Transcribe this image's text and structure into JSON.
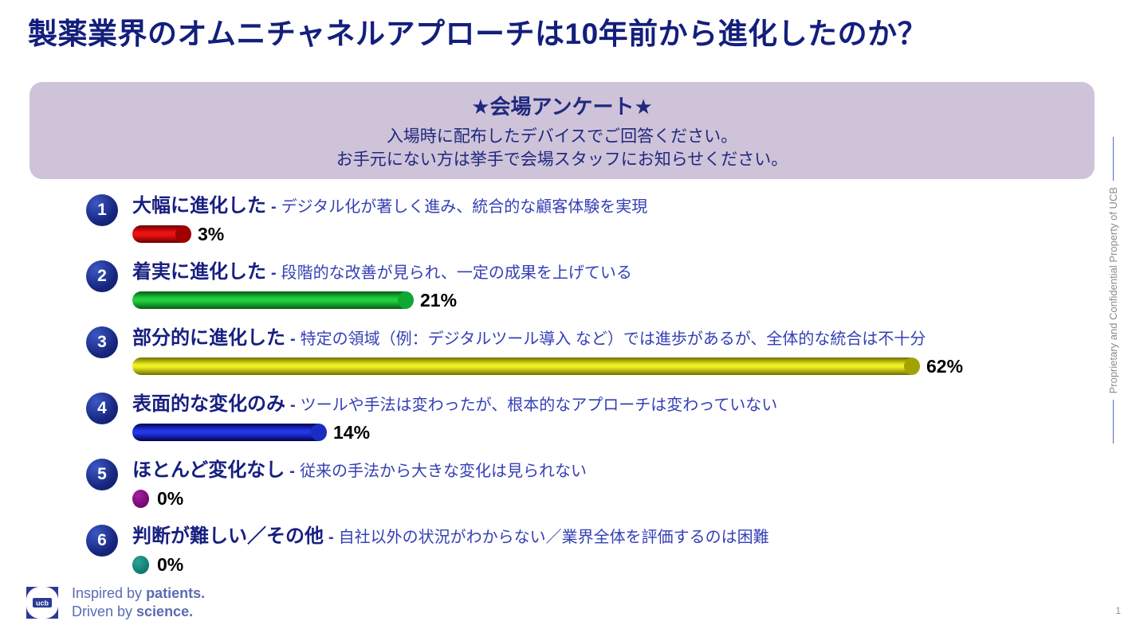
{
  "slide": {
    "title": "製薬業界のオムニチャネルアプローチは10年前から進化したのか？",
    "page_number": "1"
  },
  "banner": {
    "heading": "★会場アンケート★",
    "line1": "入場時に配布したデバイスでご回答ください。",
    "line2": "お手元にない方は挙手で会場スタッフにお知らせください。"
  },
  "ui": {
    "separator": "-"
  },
  "options": [
    {
      "number": "1",
      "label": "大幅に進化した",
      "description": "デジタル化が著しく進み、統合的な顧客体験を実現",
      "percent": 3,
      "percent_label": "3%",
      "bar_colors": {
        "bright": "#ee1111",
        "dark": "#6a0000",
        "cap": "#a00000"
      }
    },
    {
      "number": "2",
      "label": "着実に進化した",
      "description": "段階的な改善が見られ、一定の成果を上げている",
      "percent": 21,
      "percent_label": "21%",
      "bar_colors": {
        "bright": "#22cf3f",
        "dark": "#045c12",
        "cap": "#0ea832"
      }
    },
    {
      "number": "3",
      "label": "部分的に進化した",
      "description": "特定の領域（例：デジタルツール導入 など）では進歩があるが、全体的な統合は不十分",
      "percent": 62,
      "percent_label": "62%",
      "bar_colors": {
        "bright": "#eeee22",
        "dark": "#6e6e00",
        "cap": "#a3a300"
      }
    },
    {
      "number": "4",
      "label": "表面的な変化のみ",
      "description": "ツールや手法は変わったが、根本的なアプローチは変わっていない",
      "percent": 14,
      "percent_label": "14%",
      "bar_colors": {
        "bright": "#2236e8",
        "dark": "#000050",
        "cap": "#1b2cc0"
      }
    },
    {
      "number": "5",
      "label": "ほとんど変化なし",
      "description": "従来の手法から大きな変化は見られない",
      "percent": 0,
      "percent_label": "0%",
      "bar_colors": {
        "bright": "#a020a0",
        "dark": "#6a006a",
        "cap": "#8b008b"
      }
    },
    {
      "number": "6",
      "label": "判断が難しい／その他",
      "description": "自社以外の状況がわからない／業界全体を評価するのは困難",
      "percent": 0,
      "percent_label": "0%",
      "bar_colors": {
        "bright": "#2aa396",
        "dark": "#0c6e63",
        "cap": "#178a80"
      }
    }
  ],
  "sidebar": {
    "confidential_text": "Proprietary and Confidential Property of UCB"
  },
  "footer": {
    "logo_text": "ucb",
    "tagline_line1_prefix": "Inspired by ",
    "tagline_line1_bold": "patients.",
    "tagline_line2_prefix": "Driven by ",
    "tagline_line2_bold": "science."
  },
  "colors": {
    "title_navy": "#131f7c",
    "banner_background": "#cec3d9",
    "banner_text": "#20287f",
    "label_navy": "#171f80",
    "description_blue": "#3540b5",
    "percent_black": "#000000",
    "logo_blue": "#2b3a97",
    "confidential_gray": "#8c8c8c",
    "side_line_blue": "#5a68cc"
  },
  "chart_data": {
    "type": "bar",
    "orientation": "horizontal",
    "title": "製薬業界のオムニチャネルアプローチは10年前から進化したのか？",
    "categories": [
      "大幅に進化した",
      "着実に進化した",
      "部分的に進化した",
      "表面的な変化のみ",
      "ほとんど変化なし",
      "判断が難しい／その他"
    ],
    "values": [
      3,
      21,
      62,
      14,
      0,
      0
    ],
    "value_labels": [
      "3%",
      "21%",
      "62%",
      "14%",
      "0%",
      "0%"
    ],
    "unit": "%",
    "xlim": [
      0,
      62
    ],
    "bar_colors": [
      "#cc0000",
      "#11b02e",
      "#d8d800",
      "#0a1ecc",
      "#8b008b",
      "#178a80"
    ],
    "grid": false,
    "legend": false
  }
}
